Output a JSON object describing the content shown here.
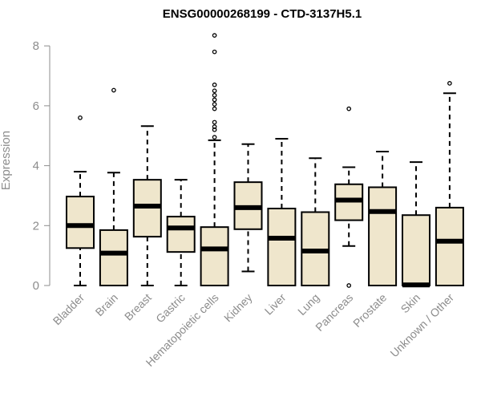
{
  "chart_data": {
    "type": "box",
    "title": "ENSG00000268199 - CTD-3137H5.1",
    "xlabel": "",
    "ylabel": "Expression",
    "ylim": [
      0,
      8.5
    ],
    "yticks": [
      0,
      2,
      4,
      6,
      8
    ],
    "grid": false,
    "legend": "none",
    "box_fill_color": "#efe6cc",
    "box_stroke_color": "#000000",
    "categories": [
      "Bladder",
      "Brain",
      "Breast",
      "Gastric",
      "Hematopoietic cells",
      "Kidney",
      "Liver",
      "Lung",
      "Pancreas",
      "Prostate",
      "Skin",
      "Unknown / Other"
    ],
    "boxes": [
      {
        "category": "Bladder",
        "whisker_low": 0.0,
        "q1": 1.25,
        "median": 2.0,
        "q3": 2.97,
        "whisker_high": 3.8,
        "outliers": [
          5.6
        ]
      },
      {
        "category": "Brain",
        "whisker_low": 0.0,
        "q1": 0.0,
        "median": 1.08,
        "q3": 1.85,
        "whisker_high": 3.77,
        "outliers": [
          6.52
        ]
      },
      {
        "category": "Breast",
        "whisker_low": 0.0,
        "q1": 1.63,
        "median": 2.65,
        "q3": 3.53,
        "whisker_high": 5.32,
        "outliers": []
      },
      {
        "category": "Gastric",
        "whisker_low": 0.0,
        "q1": 1.12,
        "median": 1.92,
        "q3": 2.3,
        "whisker_high": 3.53,
        "outliers": []
      },
      {
        "category": "Hematopoietic cells",
        "whisker_low": 0.0,
        "q1": 0.0,
        "median": 1.22,
        "q3": 1.95,
        "whisker_high": 4.85,
        "outliers": [
          4.95,
          5.2,
          5.3,
          5.45,
          5.9,
          6.05,
          6.2,
          6.35,
          6.5,
          6.7,
          7.8,
          8.35
        ]
      },
      {
        "category": "Kidney",
        "whisker_low": 0.47,
        "q1": 1.88,
        "median": 2.6,
        "q3": 3.45,
        "whisker_high": 4.72,
        "outliers": []
      },
      {
        "category": "Liver",
        "whisker_low": 0.0,
        "q1": 0.0,
        "median": 1.58,
        "q3": 2.57,
        "whisker_high": 4.9,
        "outliers": []
      },
      {
        "category": "Lung",
        "whisker_low": 0.0,
        "q1": 0.0,
        "median": 1.15,
        "q3": 2.45,
        "whisker_high": 4.25,
        "outliers": []
      },
      {
        "category": "Pancreas",
        "whisker_low": 1.32,
        "q1": 2.18,
        "median": 2.85,
        "q3": 3.38,
        "whisker_high": 3.95,
        "outliers": [
          0.0,
          5.9
        ]
      },
      {
        "category": "Prostate",
        "whisker_low": 0.0,
        "q1": 0.0,
        "median": 2.47,
        "q3": 3.28,
        "whisker_high": 4.47,
        "outliers": []
      },
      {
        "category": "Skin",
        "whisker_low": 0.0,
        "q1": 0.0,
        "median": 0.02,
        "q3": 2.35,
        "whisker_high": 4.12,
        "outliers": []
      },
      {
        "category": "Unknown / Other",
        "whisker_low": 0.0,
        "q1": 0.0,
        "median": 1.48,
        "q3": 2.6,
        "whisker_high": 6.42,
        "outliers": [
          6.75
        ]
      }
    ]
  }
}
